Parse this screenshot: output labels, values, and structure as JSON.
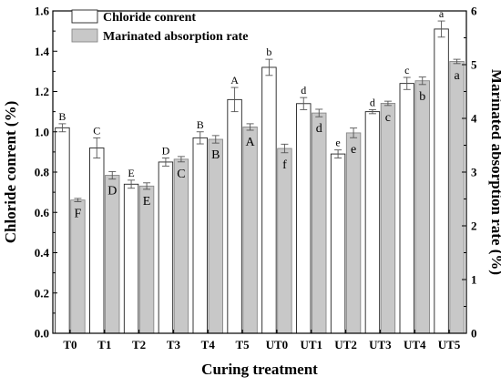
{
  "chart_data": {
    "type": "bar",
    "xlabel": "Curing treatment",
    "ylabel_left": "Chloride conrent (%)",
    "ylabel_right": "Marinated absorption rate (%)",
    "ylim_left": [
      0.0,
      1.6
    ],
    "ylim_right": [
      0,
      6
    ],
    "yticks_left": [
      "0.0",
      "0.2",
      "0.4",
      "0.6",
      "0.8",
      "1.0",
      "1.2",
      "1.4",
      "1.6"
    ],
    "yticks_right": [
      "0",
      "1",
      "2",
      "3",
      "4",
      "5",
      "6"
    ],
    "legend_position": "top-left",
    "categories": [
      "T0",
      "T1",
      "T2",
      "T3",
      "T4",
      "T5",
      "UT0",
      "UT1",
      "UT2",
      "UT3",
      "UT4",
      "UT5"
    ],
    "series": [
      {
        "name": "Chloride conrent",
        "axis": "left",
        "color": "#ffffff",
        "values": [
          1.02,
          0.92,
          0.74,
          0.85,
          0.97,
          1.16,
          1.32,
          1.14,
          0.89,
          1.1,
          1.24,
          1.51
        ],
        "errors": [
          0.02,
          0.05,
          0.02,
          0.02,
          0.03,
          0.06,
          0.04,
          0.03,
          0.02,
          0.01,
          0.03,
          0.04
        ],
        "letters": [
          "B",
          "C",
          "E",
          "D",
          "B",
          "A",
          "b",
          "d",
          "e",
          "d",
          "c",
          "a"
        ]
      },
      {
        "name": "Marinated absorption rate",
        "axis": "right",
        "color": "#c8c8c8",
        "values": [
          2.48,
          2.94,
          2.74,
          3.24,
          3.61,
          3.84,
          3.44,
          4.1,
          3.73,
          4.28,
          4.7,
          5.06
        ],
        "errors": [
          0.03,
          0.07,
          0.06,
          0.05,
          0.07,
          0.06,
          0.08,
          0.07,
          0.09,
          0.04,
          0.07,
          0.04
        ],
        "letters": [
          "F",
          "D",
          "E",
          "C",
          "B",
          "A",
          "f",
          "d",
          "e",
          "c",
          "b",
          "a"
        ]
      }
    ]
  }
}
